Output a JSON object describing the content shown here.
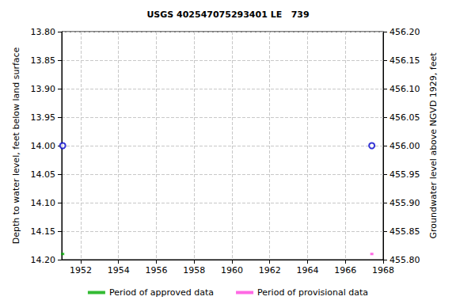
{
  "chart_data": {
    "type": "scatter",
    "title": "USGS 402547075293401 LE   739",
    "x_label": "",
    "y_label": "Depth to water level, feet below land surface",
    "y2_label": "Groundwater level above NGVD 1929, feet",
    "xlim": [
      1951,
      1968
    ],
    "xticks": [
      1952,
      1954,
      1956,
      1958,
      1960,
      1962,
      1964,
      1966,
      1968
    ],
    "ylim": [
      14.2,
      13.8
    ],
    "yticks": [
      {
        "value": 13.8,
        "label": "13.80"
      },
      13.85,
      {
        "value": 13.9,
        "label": "13.90"
      },
      13.95,
      {
        "value": 14.0,
        "label": "14.00"
      },
      14.05,
      {
        "value": 14.1,
        "label": "14.10"
      },
      14.15,
      {
        "value": 14.2,
        "label": "14.20"
      }
    ],
    "y2lim": [
      455.8,
      456.2
    ],
    "y2ticks": [
      {
        "value": 455.8,
        "label": "455.80"
      },
      455.85,
      {
        "value": 455.9,
        "label": "455.90"
      },
      455.95,
      {
        "value": 456.0,
        "label": "456.00"
      },
      456.05,
      {
        "value": 456.1,
        "label": "456.10"
      },
      456.15,
      {
        "value": 456.2,
        "label": "456.20"
      }
    ],
    "grid": true,
    "legend": "bottom",
    "series": [
      {
        "type": "scatter",
        "marker": "circle-open",
        "color": "#0000cc",
        "x": [
          1951.05,
          1967.4
        ],
        "values": [
          14.0,
          14.0
        ]
      },
      {
        "name": "Period of approved data",
        "type": "scatter",
        "marker": "square",
        "color": "#00aa00",
        "x": [
          1951.05
        ],
        "values": [
          14.19
        ]
      },
      {
        "name": "Period of provisional data",
        "type": "scatter",
        "marker": "square",
        "color": "#ff44dd",
        "x": [
          1967.4
        ],
        "values": [
          14.19
        ]
      }
    ]
  }
}
